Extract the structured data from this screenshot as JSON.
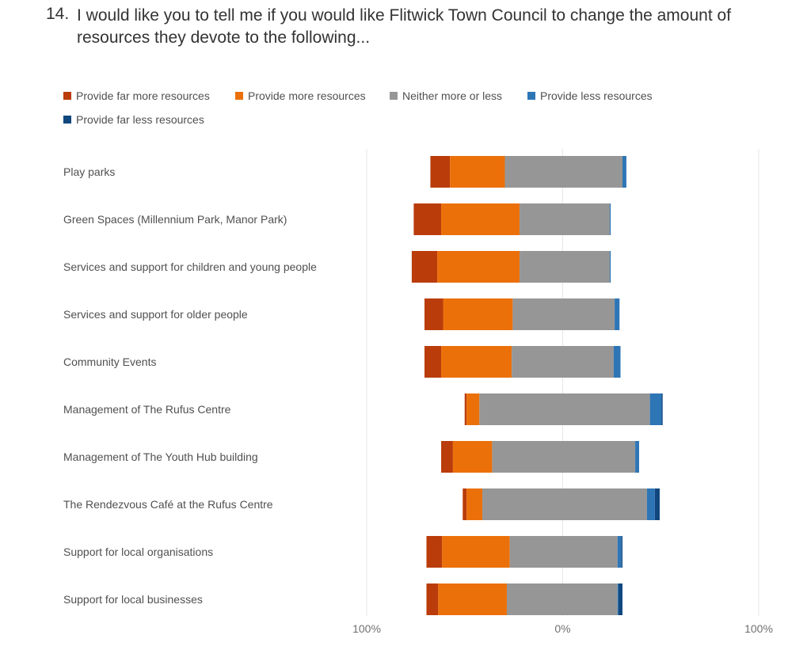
{
  "question": {
    "number": "14.",
    "text": "I would like you to tell me if you would like Flitwick Town Council to change the amount of resources they  devote to the following..."
  },
  "colors": {
    "far_more": "#B93C0A",
    "more": "#EB700A",
    "neither": "#969696",
    "less": "#2E75B6",
    "far_less": "#10477E",
    "grid": "#e6e6e6"
  },
  "chart_data": {
    "type": "bar",
    "orientation": "horizontal",
    "stacked": "diverging",
    "xlim": [
      -100,
      100
    ],
    "tick_labels": [
      "100%",
      "0%",
      "100%"
    ],
    "series": [
      {
        "name": "Provide far more resources",
        "color": "#B93C0A"
      },
      {
        "name": "Provide more resources",
        "color": "#EB700A"
      },
      {
        "name": "Neither more or less",
        "color": "#969696"
      },
      {
        "name": "Provide less resources",
        "color": "#2E75B6"
      },
      {
        "name": "Provide far less resources",
        "color": "#10477E"
      }
    ],
    "categories": [
      "Play parks",
      "Green Spaces (Millennium Park, Manor Park)",
      "Services and support for children and young people",
      "Services and support for older people",
      "Community Events",
      "Management of The Rufus Centre",
      "Management of The Youth Hub building",
      "The Rendezvous Café at the Rufus Centre",
      "Support for local organisations",
      "Support for local businesses"
    ],
    "values": [
      [
        10,
        28,
        60,
        2,
        0
      ],
      [
        14,
        40,
        46,
        0.5,
        0
      ],
      [
        13,
        42,
        46,
        0.5,
        0
      ],
      [
        9.5,
        35.5,
        52,
        2.5,
        0
      ],
      [
        8.5,
        36,
        52,
        3.5,
        0
      ],
      [
        1,
        6.5,
        87,
        6,
        0.5
      ],
      [
        6,
        20,
        73,
        2,
        0
      ],
      [
        2,
        8,
        84,
        4,
        2.5
      ],
      [
        8,
        34.5,
        55,
        2,
        0.5
      ],
      [
        6,
        35,
        56.5,
        0.5,
        2
      ]
    ],
    "neutral_offset": [
      29.5,
      22,
      22,
      25.5,
      26,
      42.5,
      36,
      41,
      27,
      28.5
    ]
  }
}
